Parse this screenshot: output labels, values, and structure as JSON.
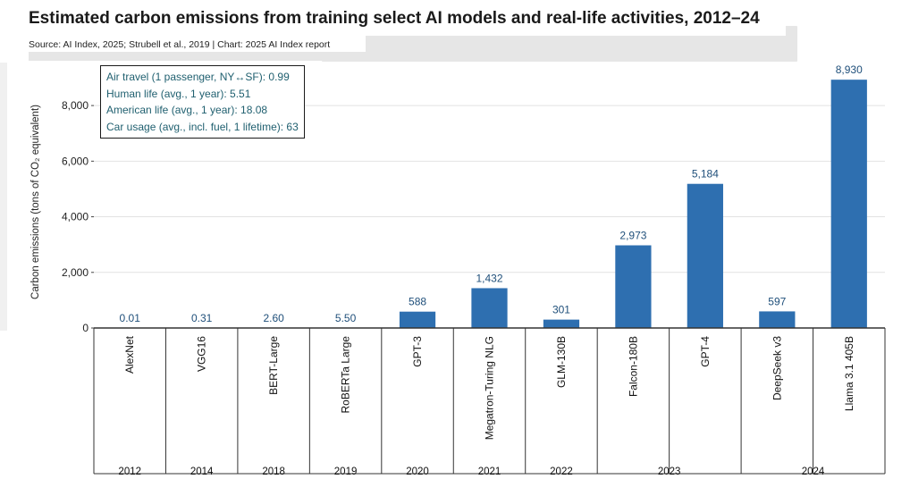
{
  "title": "Estimated carbon emissions from training select AI models and real-life activities, 2012–24",
  "source": "Source: AI Index, 2025; Strubell et al., 2019 | Chart: 2025 AI Index report",
  "legend": [
    "Air travel (1 passenger, NY↔SF): 0.99",
    "Human life (avg., 1 year): 5.51",
    "American life (avg., 1 year): 18.08",
    "Car usage (avg., incl. fuel, 1 lifetime): 63"
  ],
  "colors": {
    "bar": "#2E6FB0",
    "grid": "#e2e2e2",
    "legend_text": "#1f5f6f"
  },
  "chart_data": {
    "type": "bar",
    "ylabel": "Carbon emissions (tons of CO₂ equivalent)",
    "ylim": [
      0,
      9000
    ],
    "yticks": [
      0,
      2000,
      4000,
      6000,
      8000
    ],
    "ytick_labels": [
      "0",
      "2,000",
      "4,000",
      "6,000",
      "8,000"
    ],
    "grid": true,
    "categories": [
      "AlexNet",
      "VGG16",
      "BERT-Large",
      "RoBERTa Large",
      "GPT-3",
      "Megatron-Turing NLG",
      "GLM-130B",
      "Falcon-180B",
      "GPT-4",
      "DeepSeek v3",
      "Llama 3.1 405B"
    ],
    "years": [
      "2012",
      "2014",
      "2018",
      "2019",
      "2020",
      "2021",
      "2022",
      "2023",
      "2023",
      "2024",
      "2024"
    ],
    "year_groups": [
      {
        "label": "2012",
        "span": 1
      },
      {
        "label": "2014",
        "span": 1
      },
      {
        "label": "2018",
        "span": 1
      },
      {
        "label": "2019",
        "span": 1
      },
      {
        "label": "2020",
        "span": 1
      },
      {
        "label": "2021",
        "span": 1
      },
      {
        "label": "2022",
        "span": 1
      },
      {
        "label": "2023",
        "span": 2
      },
      {
        "label": "2024",
        "span": 2
      }
    ],
    "values": [
      0.01,
      0.31,
      2.6,
      5.5,
      588,
      1432,
      301,
      2973,
      5184,
      597,
      8930
    ],
    "value_labels": [
      "0.01",
      "0.31",
      "2.60",
      "5.50",
      "588",
      "1,432",
      "301",
      "2,973",
      "5,184",
      "597",
      "8,930"
    ]
  }
}
